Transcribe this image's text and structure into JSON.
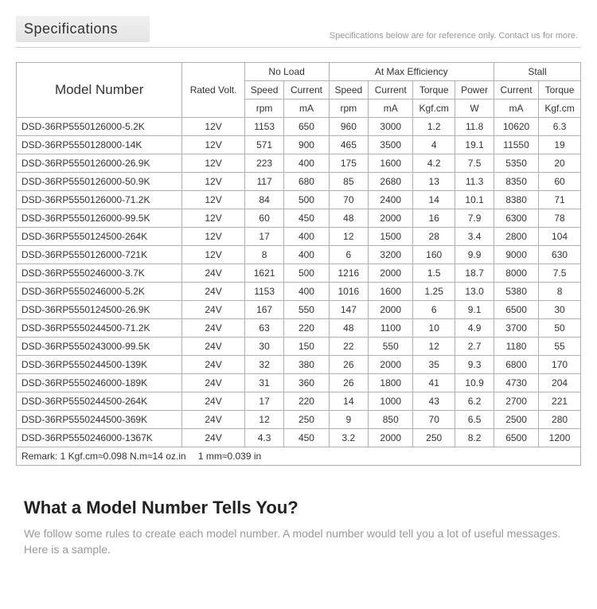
{
  "header": {
    "title": "Specifications",
    "note": "Specifications below are for reference only. Contact us for more."
  },
  "table": {
    "groupHeads": {
      "model": "Model Number",
      "rated": "Rated Volt.",
      "noload": "No Load",
      "maxeff": "At Max Efficiency",
      "stall": "Stall"
    },
    "subHeads": {
      "speed": "Speed",
      "current": "Current",
      "torque": "Torque",
      "power": "Power"
    },
    "units": {
      "rpm": "rpm",
      "mA": "mA",
      "kgfcm": "Kgf.cm",
      "W": "W"
    },
    "rows": [
      {
        "model": "DSD-36RP5550126000-5.2K",
        "volt": "12V",
        "nl_speed": "1153",
        "nl_curr": "650",
        "me_speed": "960",
        "me_curr": "3000",
        "me_torque": "1.2",
        "me_power": "11.8",
        "st_curr": "10620",
        "st_torque": "6.3"
      },
      {
        "model": "DSD-36RP5550128000-14K",
        "volt": "12V",
        "nl_speed": "571",
        "nl_curr": "900",
        "me_speed": "465",
        "me_curr": "3500",
        "me_torque": "4",
        "me_power": "19.1",
        "st_curr": "11550",
        "st_torque": "19"
      },
      {
        "model": "DSD-36RP5550126000-26.9K",
        "volt": "12V",
        "nl_speed": "223",
        "nl_curr": "400",
        "me_speed": "175",
        "me_curr": "1600",
        "me_torque": "4.2",
        "me_power": "7.5",
        "st_curr": "5350",
        "st_torque": "20"
      },
      {
        "model": "DSD-36RP5550126000-50.9K",
        "volt": "12V",
        "nl_speed": "117",
        "nl_curr": "680",
        "me_speed": "85",
        "me_curr": "2680",
        "me_torque": "13",
        "me_power": "11.3",
        "st_curr": "8350",
        "st_torque": "60"
      },
      {
        "model": "DSD-36RP5550126000-71.2K",
        "volt": "12V",
        "nl_speed": "84",
        "nl_curr": "500",
        "me_speed": "70",
        "me_curr": "2400",
        "me_torque": "14",
        "me_power": "10.1",
        "st_curr": "8380",
        "st_torque": "71"
      },
      {
        "model": "DSD-36RP5550126000-99.5K",
        "volt": "12V",
        "nl_speed": "60",
        "nl_curr": "450",
        "me_speed": "48",
        "me_curr": "2000",
        "me_torque": "16",
        "me_power": "7.9",
        "st_curr": "6300",
        "st_torque": "78"
      },
      {
        "model": "DSD-36RP5550124500-264K",
        "volt": "12V",
        "nl_speed": "17",
        "nl_curr": "400",
        "me_speed": "12",
        "me_curr": "1500",
        "me_torque": "28",
        "me_power": "3.4",
        "st_curr": "2800",
        "st_torque": "104"
      },
      {
        "model": "DSD-36RP5550126000-721K",
        "volt": "12V",
        "nl_speed": "8",
        "nl_curr": "400",
        "me_speed": "6",
        "me_curr": "3200",
        "me_torque": "160",
        "me_power": "9.9",
        "st_curr": "9000",
        "st_torque": "630"
      },
      {
        "model": "DSD-36RP5550246000-3.7K",
        "volt": "24V",
        "nl_speed": "1621",
        "nl_curr": "500",
        "me_speed": "1216",
        "me_curr": "2000",
        "me_torque": "1.5",
        "me_power": "18.7",
        "st_curr": "8000",
        "st_torque": "7.5"
      },
      {
        "model": "DSD-36RP5550246000-5.2K",
        "volt": "24V",
        "nl_speed": "1153",
        "nl_curr": "400",
        "me_speed": "1016",
        "me_curr": "1600",
        "me_torque": "1.25",
        "me_power": "13.0",
        "st_curr": "5380",
        "st_torque": "8"
      },
      {
        "model": "DSD-36RP5550124500-26.9K",
        "volt": "24V",
        "nl_speed": "167",
        "nl_curr": "550",
        "me_speed": "147",
        "me_curr": "2000",
        "me_torque": "6",
        "me_power": "9.1",
        "st_curr": "6500",
        "st_torque": "30"
      },
      {
        "model": "DSD-36RP5550244500-71.2K",
        "volt": "24V",
        "nl_speed": "63",
        "nl_curr": "220",
        "me_speed": "48",
        "me_curr": "1100",
        "me_torque": "10",
        "me_power": "4.9",
        "st_curr": "3700",
        "st_torque": "50"
      },
      {
        "model": "DSD-36RP5550243000-99.5K",
        "volt": "24V",
        "nl_speed": "30",
        "nl_curr": "150",
        "me_speed": "22",
        "me_curr": "550",
        "me_torque": "12",
        "me_power": "2.7",
        "st_curr": "1180",
        "st_torque": "55"
      },
      {
        "model": "DSD-36RP5550244500-139K",
        "volt": "24V",
        "nl_speed": "32",
        "nl_curr": "380",
        "me_speed": "26",
        "me_curr": "2000",
        "me_torque": "35",
        "me_power": "9.3",
        "st_curr": "6800",
        "st_torque": "170"
      },
      {
        "model": "DSD-36RP5550246000-189K",
        "volt": "24V",
        "nl_speed": "31",
        "nl_curr": "360",
        "me_speed": "26",
        "me_curr": "1800",
        "me_torque": "41",
        "me_power": "10.9",
        "st_curr": "4730",
        "st_torque": "204"
      },
      {
        "model": "DSD-36RP5550244500-264K",
        "volt": "24V",
        "nl_speed": "17",
        "nl_curr": "220",
        "me_speed": "14",
        "me_curr": "1000",
        "me_torque": "43",
        "me_power": "6.2",
        "st_curr": "2700",
        "st_torque": "221"
      },
      {
        "model": "DSD-36RP5550244500-369K",
        "volt": "24V",
        "nl_speed": "12",
        "nl_curr": "250",
        "me_speed": "9",
        "me_curr": "850",
        "me_torque": "70",
        "me_power": "6.5",
        "st_curr": "2500",
        "st_torque": "280"
      },
      {
        "model": "DSD-36RP5550246000-1367K",
        "volt": "24V",
        "nl_speed": "4.3",
        "nl_curr": "450",
        "me_speed": "3.2",
        "me_curr": "2000",
        "me_torque": "250",
        "me_power": "8.2",
        "st_curr": "6500",
        "st_torque": "1200"
      }
    ],
    "remark": "Remark: 1 Kgf.cm≈0.098 N.m≈14 oz.in  1 mm≈0.039 in"
  },
  "section": {
    "heading": "What a Model Number Tells You?",
    "intro": "We follow some rules to create each model number. A model number would tell you a lot of useful messages. Here is a sample."
  }
}
